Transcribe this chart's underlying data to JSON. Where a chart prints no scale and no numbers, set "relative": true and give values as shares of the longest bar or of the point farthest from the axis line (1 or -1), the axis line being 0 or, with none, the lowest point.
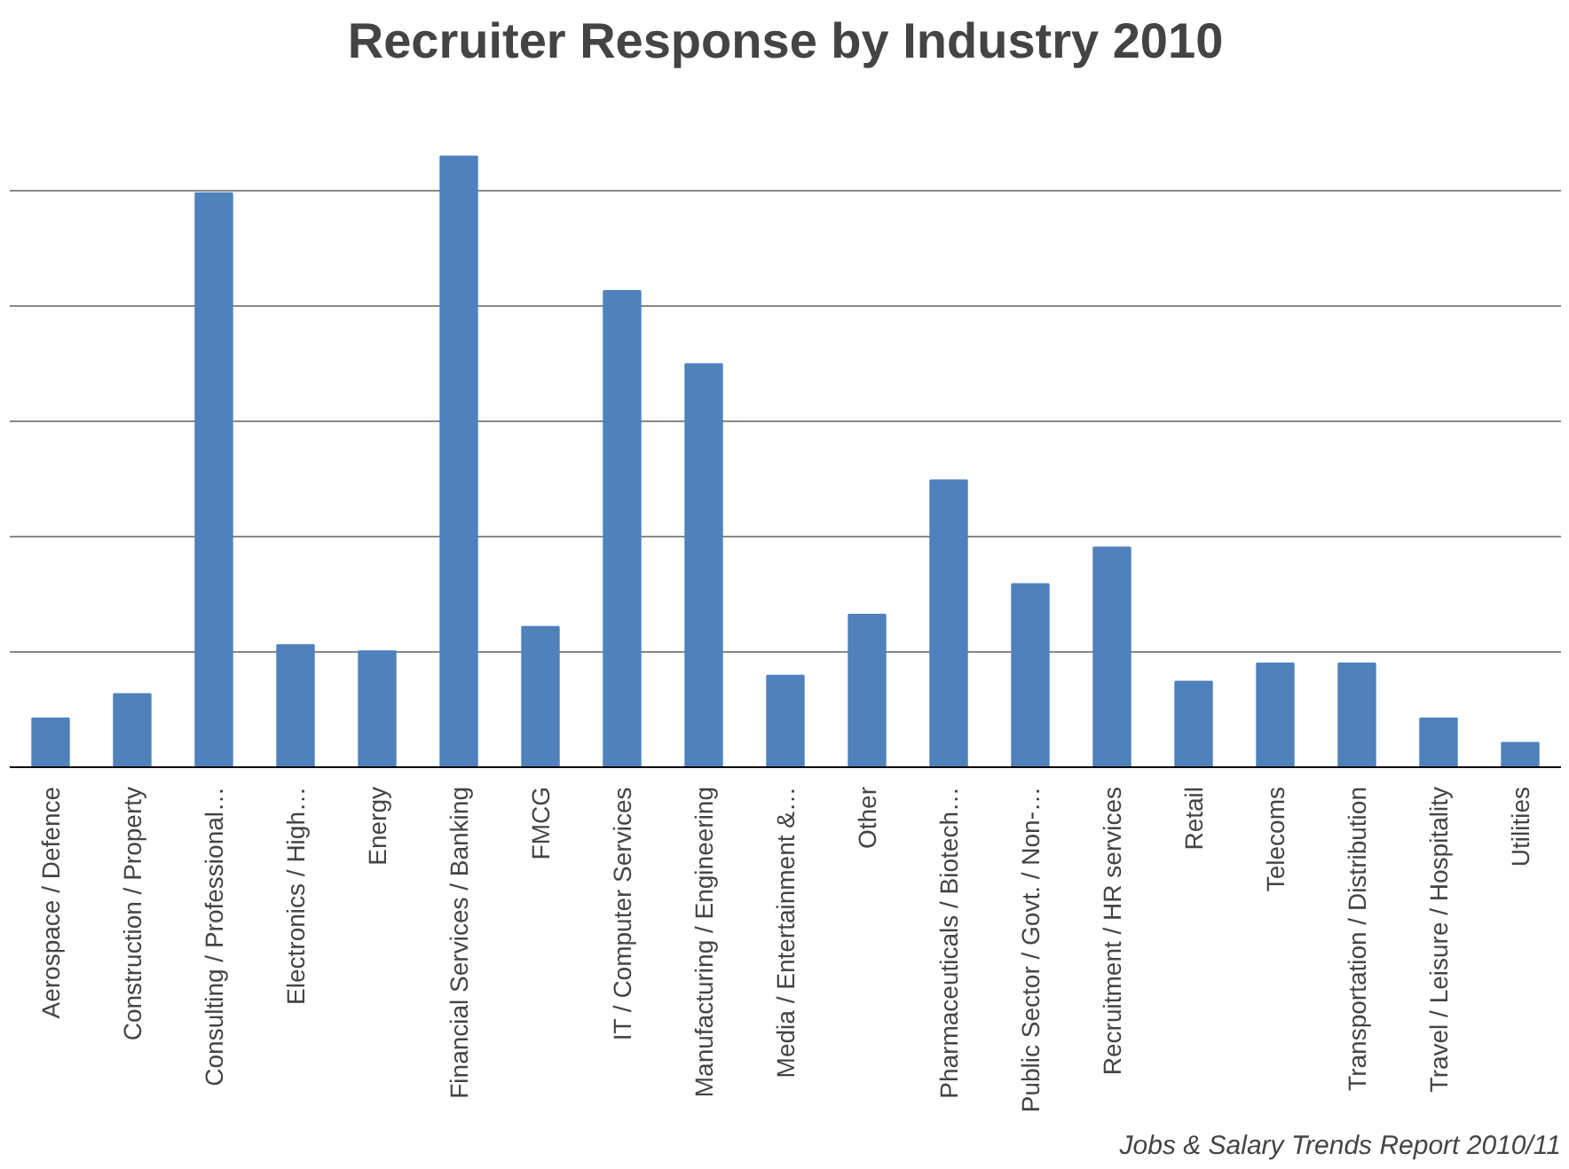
{
  "chart_data": {
    "type": "bar",
    "title": "Recruiter Response by Industry 2010",
    "categories": [
      "Aerospace / Defence",
      "Construction / Property",
      "Consulting / Professional…",
      "Electronics / High…",
      "Energy",
      "Financial Services / Banking",
      "FMCG",
      "IT / Computer Services",
      "Manufacturing / Engineering",
      "Media / Entertainment &…",
      "Other",
      "Pharmaceuticals / Biotech…",
      "Public Sector / Govt. / Non-…",
      "Recruitment / HR services",
      "Retail",
      "Telecoms",
      "Transportation / Distribution",
      "Travel / Leisure / Hospitality",
      "Utilities"
    ],
    "values": [
      0.08,
      0.12,
      0.94,
      0.2,
      0.19,
      1,
      0.23,
      0.78,
      0.66,
      0.15,
      0.25,
      0.47,
      0.3,
      0.36,
      0.14,
      0.17,
      0.17,
      0.08,
      0.04
    ],
    "color": "#4f81bd",
    "relative": true,
    "grid": "y",
    "annotations": [
      "Jobs & Salary Trends Report 2010/11"
    ]
  }
}
